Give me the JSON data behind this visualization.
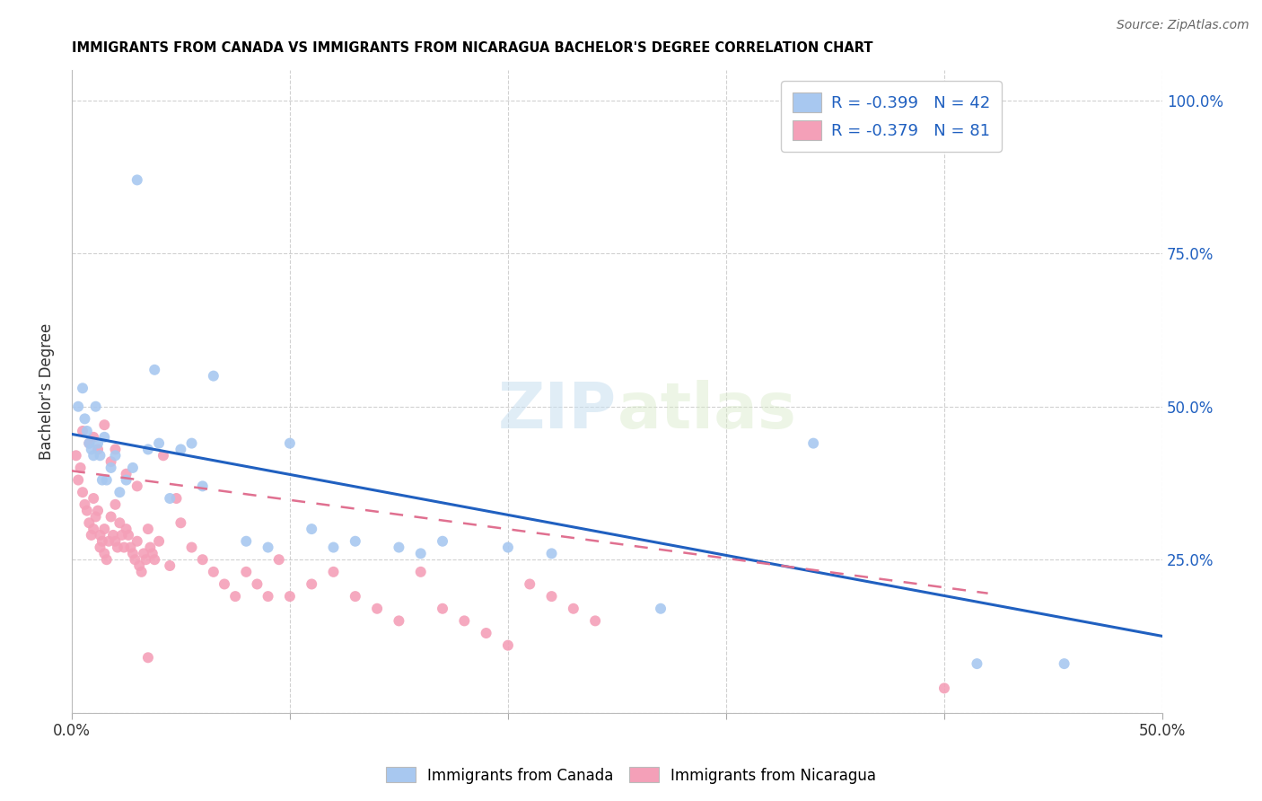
{
  "title": "IMMIGRANTS FROM CANADA VS IMMIGRANTS FROM NICARAGUA BACHELOR'S DEGREE CORRELATION CHART",
  "source_text": "Source: ZipAtlas.com",
  "ylabel": "Bachelor's Degree",
  "xlim": [
    0.0,
    0.5
  ],
  "ylim": [
    0.0,
    1.05
  ],
  "yticks": [
    0.0,
    0.25,
    0.5,
    0.75,
    1.0
  ],
  "ytick_labels": [
    "",
    "25.0%",
    "50.0%",
    "75.0%",
    "100.0%"
  ],
  "xticks": [
    0.0,
    0.1,
    0.2,
    0.3,
    0.4,
    0.5
  ],
  "xtick_labels": [
    "0.0%",
    "",
    "",
    "",
    "",
    "50.0%"
  ],
  "canada_color": "#A8C8F0",
  "nicaragua_color": "#F4A0B8",
  "canada_line_color": "#2060C0",
  "nicaragua_line_color": "#E07090",
  "watermark_zip": "ZIP",
  "watermark_atlas": "atlas",
  "legend_canada_R": "-0.399",
  "legend_canada_N": "42",
  "legend_nicaragua_R": "-0.379",
  "legend_nicaragua_N": "81",
  "canada_line_x": [
    0.0,
    0.5
  ],
  "canada_line_y": [
    0.455,
    0.125
  ],
  "nicaragua_line_x": [
    0.0,
    0.42
  ],
  "nicaragua_line_y": [
    0.395,
    0.195
  ],
  "canada_x": [
    0.003,
    0.005,
    0.006,
    0.007,
    0.008,
    0.009,
    0.01,
    0.011,
    0.012,
    0.013,
    0.014,
    0.015,
    0.016,
    0.018,
    0.02,
    0.022,
    0.025,
    0.028,
    0.03,
    0.035,
    0.038,
    0.04,
    0.045,
    0.05,
    0.055,
    0.06,
    0.065,
    0.08,
    0.09,
    0.1,
    0.11,
    0.12,
    0.13,
    0.15,
    0.16,
    0.17,
    0.2,
    0.22,
    0.27,
    0.34,
    0.415,
    0.455
  ],
  "canada_y": [
    0.5,
    0.53,
    0.48,
    0.46,
    0.44,
    0.43,
    0.42,
    0.5,
    0.44,
    0.42,
    0.38,
    0.45,
    0.38,
    0.4,
    0.42,
    0.36,
    0.38,
    0.4,
    0.87,
    0.43,
    0.56,
    0.44,
    0.35,
    0.43,
    0.44,
    0.37,
    0.55,
    0.28,
    0.27,
    0.44,
    0.3,
    0.27,
    0.28,
    0.27,
    0.26,
    0.28,
    0.27,
    0.26,
    0.17,
    0.44,
    0.08,
    0.08
  ],
  "nicaragua_x": [
    0.002,
    0.003,
    0.004,
    0.005,
    0.006,
    0.007,
    0.008,
    0.009,
    0.01,
    0.01,
    0.011,
    0.012,
    0.013,
    0.013,
    0.014,
    0.015,
    0.015,
    0.016,
    0.017,
    0.018,
    0.019,
    0.02,
    0.02,
    0.021,
    0.022,
    0.023,
    0.024,
    0.025,
    0.026,
    0.027,
    0.028,
    0.029,
    0.03,
    0.031,
    0.032,
    0.033,
    0.034,
    0.035,
    0.036,
    0.037,
    0.038,
    0.04,
    0.042,
    0.045,
    0.048,
    0.05,
    0.055,
    0.06,
    0.065,
    0.07,
    0.075,
    0.08,
    0.085,
    0.09,
    0.095,
    0.1,
    0.11,
    0.12,
    0.13,
    0.14,
    0.15,
    0.16,
    0.17,
    0.18,
    0.19,
    0.2,
    0.21,
    0.22,
    0.23,
    0.24,
    0.005,
    0.008,
    0.01,
    0.012,
    0.015,
    0.018,
    0.02,
    0.025,
    0.03,
    0.4,
    0.035
  ],
  "nicaragua_y": [
    0.42,
    0.38,
    0.4,
    0.36,
    0.34,
    0.33,
    0.31,
    0.29,
    0.35,
    0.3,
    0.32,
    0.33,
    0.29,
    0.27,
    0.28,
    0.3,
    0.26,
    0.25,
    0.28,
    0.32,
    0.29,
    0.28,
    0.34,
    0.27,
    0.31,
    0.29,
    0.27,
    0.3,
    0.29,
    0.27,
    0.26,
    0.25,
    0.28,
    0.24,
    0.23,
    0.26,
    0.25,
    0.3,
    0.27,
    0.26,
    0.25,
    0.28,
    0.42,
    0.24,
    0.35,
    0.31,
    0.27,
    0.25,
    0.23,
    0.21,
    0.19,
    0.23,
    0.21,
    0.19,
    0.25,
    0.19,
    0.21,
    0.23,
    0.19,
    0.17,
    0.15,
    0.23,
    0.17,
    0.15,
    0.13,
    0.11,
    0.21,
    0.19,
    0.17,
    0.15,
    0.46,
    0.44,
    0.45,
    0.43,
    0.47,
    0.41,
    0.43,
    0.39,
    0.37,
    0.04,
    0.09
  ]
}
